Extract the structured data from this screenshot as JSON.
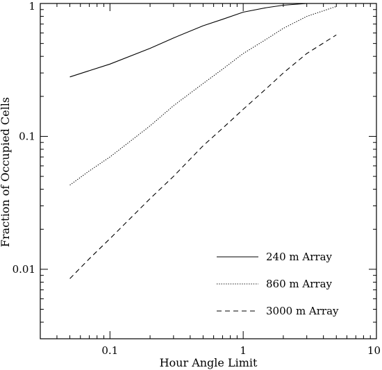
{
  "chart_data": {
    "type": "line",
    "xlabel": "Hour Angle Limit",
    "ylabel": "Fraction of Occupied Cells",
    "xscale": "log",
    "yscale": "log",
    "xlim": [
      0.03,
      10
    ],
    "ylim": [
      0.003,
      1
    ],
    "x_ticks": [
      {
        "value": 0.1,
        "label": "0.1"
      },
      {
        "value": 1,
        "label": "1"
      },
      {
        "value": 10,
        "label": "10"
      }
    ],
    "y_ticks": [
      {
        "value": 0.01,
        "label": "0.01"
      },
      {
        "value": 0.1,
        "label": "0.1"
      },
      {
        "value": 1,
        "label": "1"
      }
    ],
    "grid": false,
    "legend_position": "bottom-right",
    "series": [
      {
        "name": "240 m Array",
        "line_style": "solid",
        "points": [
          [
            0.05,
            0.28
          ],
          [
            0.1,
            0.35
          ],
          [
            0.2,
            0.46
          ],
          [
            0.3,
            0.55
          ],
          [
            0.5,
            0.68
          ],
          [
            0.7,
            0.76
          ],
          [
            1.0,
            0.86
          ],
          [
            1.5,
            0.93
          ],
          [
            2.0,
            0.97
          ],
          [
            3.0,
            1.0
          ],
          [
            4.0,
            1.0
          ]
        ]
      },
      {
        "name": "860 m Array",
        "line_style": "dotted",
        "points": [
          [
            0.05,
            0.043
          ],
          [
            0.07,
            0.055
          ],
          [
            0.1,
            0.07
          ],
          [
            0.2,
            0.12
          ],
          [
            0.3,
            0.17
          ],
          [
            0.5,
            0.25
          ],
          [
            0.7,
            0.32
          ],
          [
            1.0,
            0.42
          ],
          [
            1.5,
            0.54
          ],
          [
            2.0,
            0.65
          ],
          [
            3.0,
            0.8
          ],
          [
            5.0,
            0.95
          ]
        ]
      },
      {
        "name": "3000 m Array",
        "line_style": "dashed",
        "points": [
          [
            0.05,
            0.0085
          ],
          [
            0.07,
            0.012
          ],
          [
            0.1,
            0.017
          ],
          [
            0.2,
            0.034
          ],
          [
            0.3,
            0.05
          ],
          [
            0.5,
            0.085
          ],
          [
            0.7,
            0.115
          ],
          [
            1.0,
            0.16
          ],
          [
            1.5,
            0.23
          ],
          [
            2.0,
            0.3
          ],
          [
            3.0,
            0.42
          ],
          [
            5.0,
            0.58
          ]
        ]
      }
    ]
  }
}
